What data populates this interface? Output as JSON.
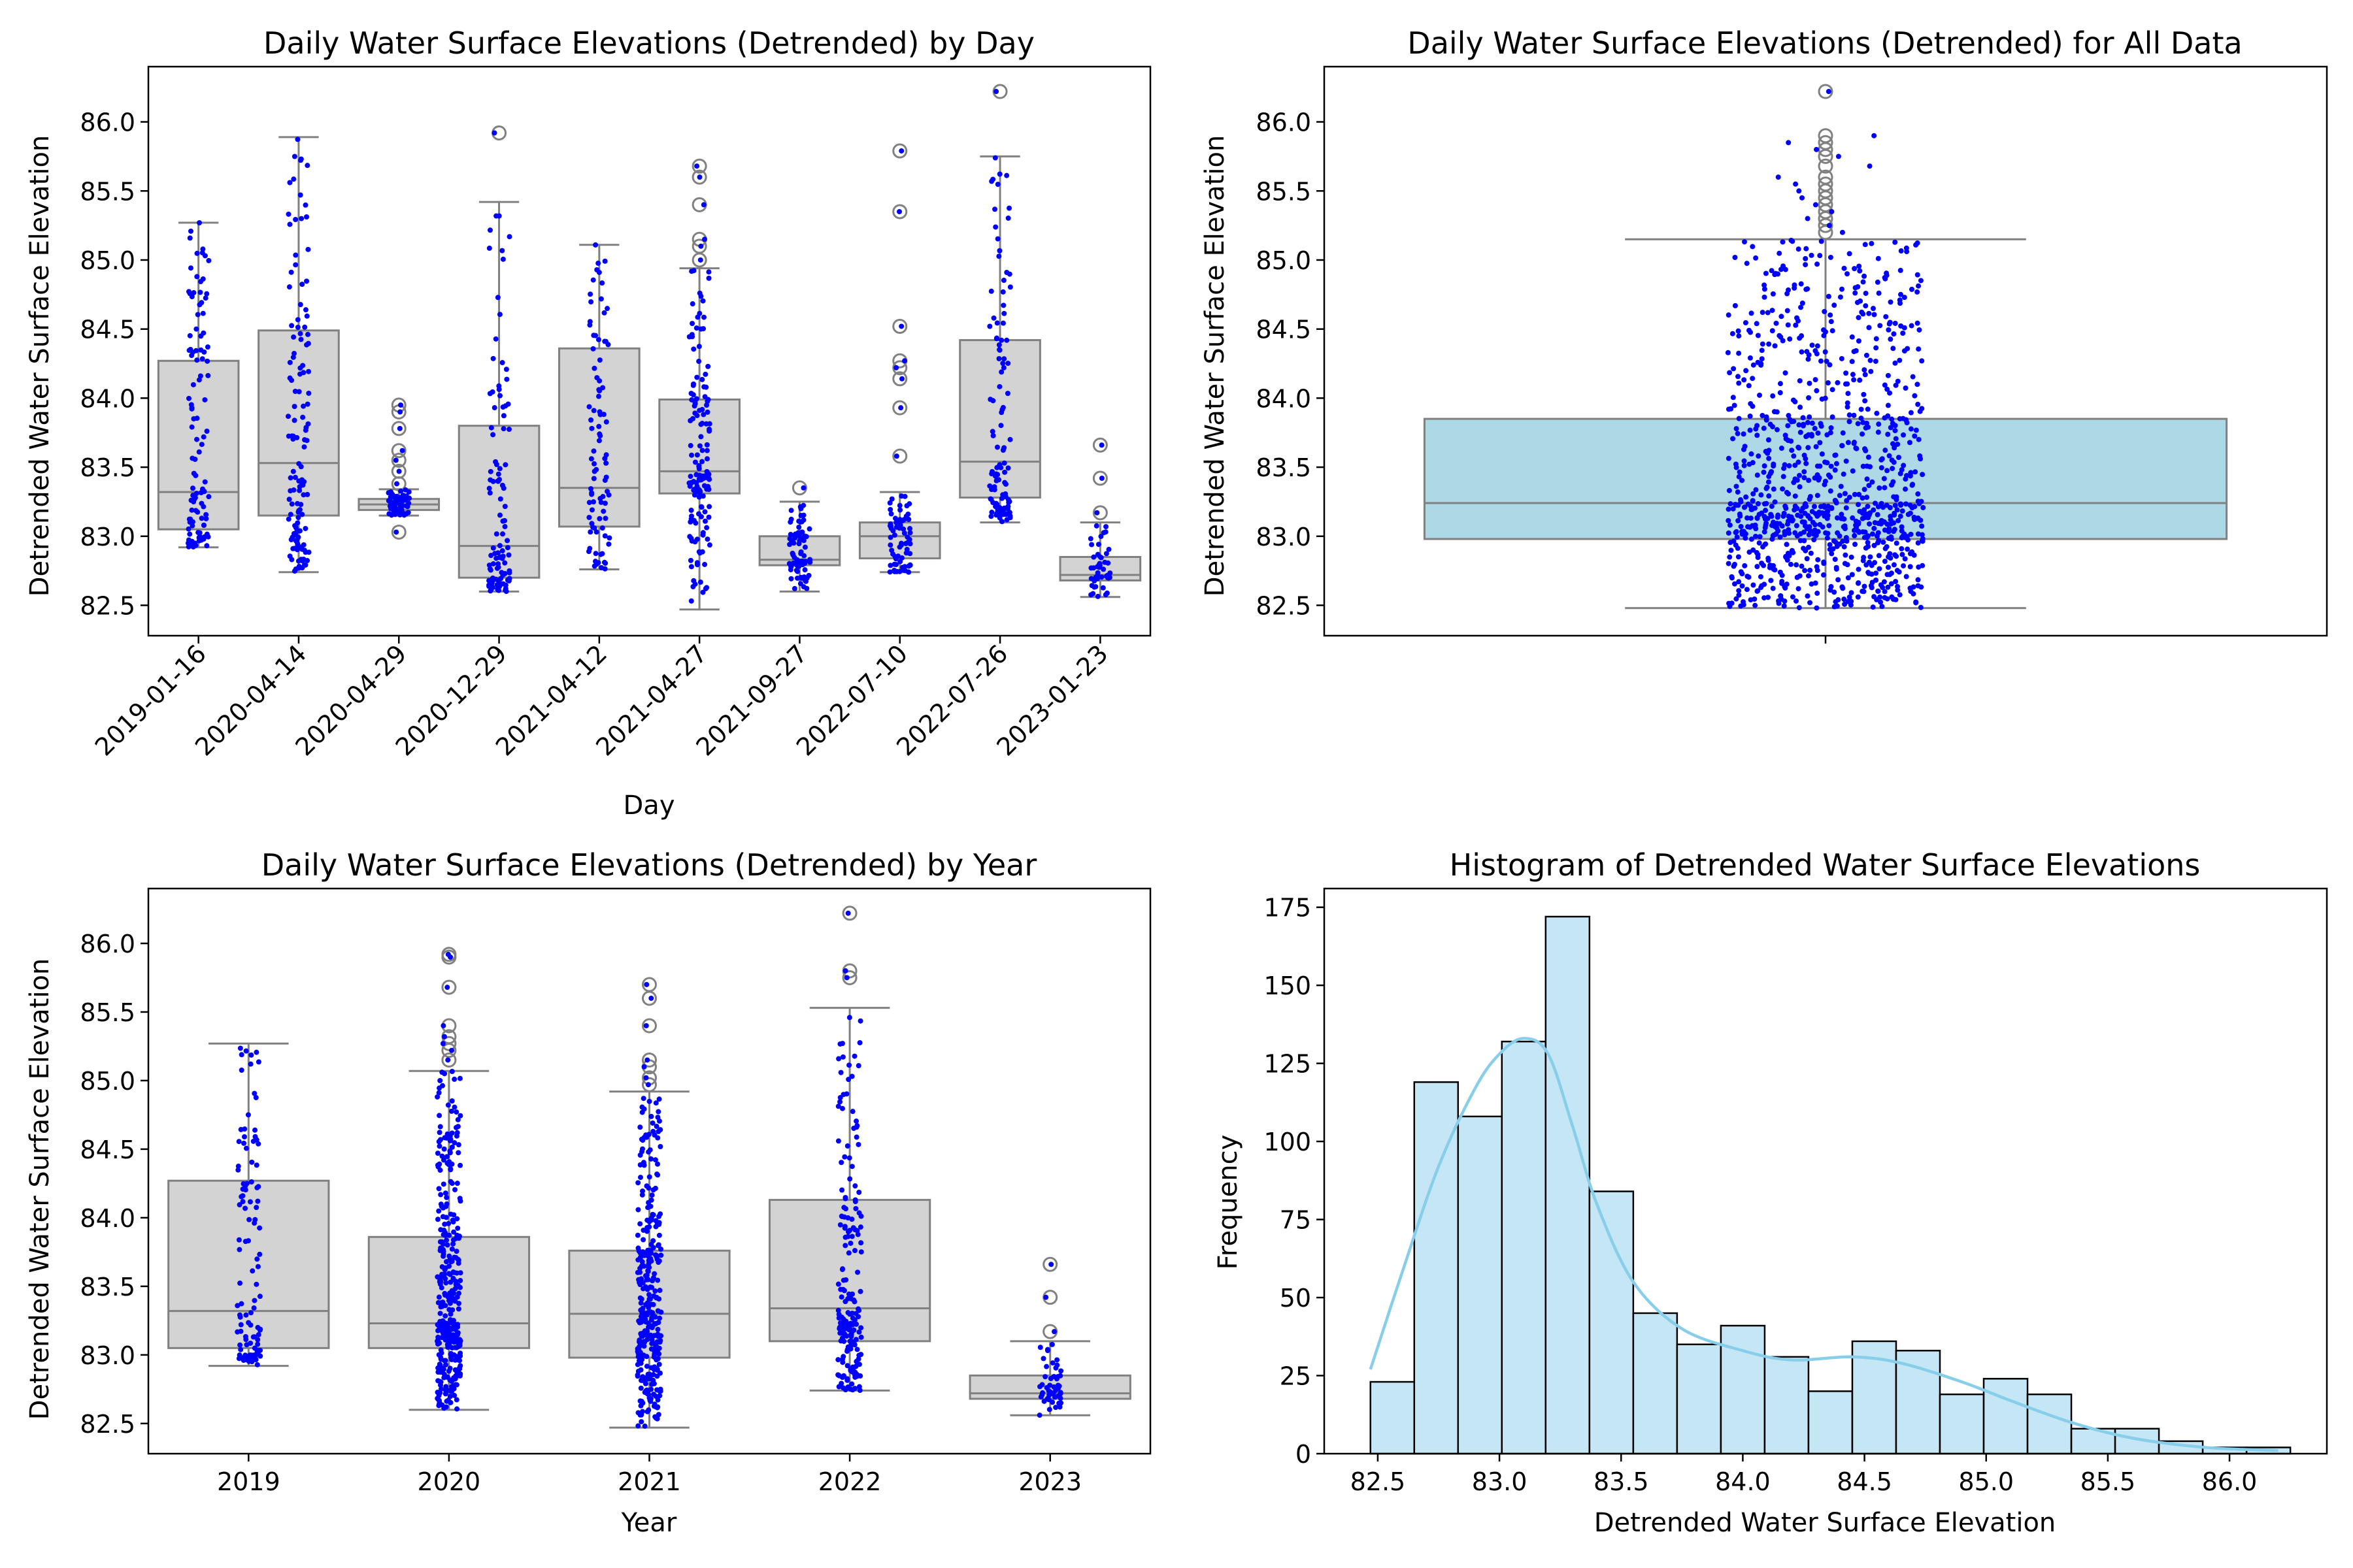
{
  "chart_data": [
    {
      "type": "box",
      "title": "Daily Water Surface Elevations (Detrended) by Day",
      "xlabel": "Day",
      "ylabel": "Detrended Water Surface Elevation",
      "ylim": [
        82.28,
        86.4
      ],
      "yticks": [
        82.5,
        83.0,
        83.5,
        84.0,
        84.5,
        85.0,
        85.5,
        86.0
      ],
      "box_color": "#d3d3d3",
      "point_color": "#0000ff",
      "categories": [
        "2019-01-16",
        "2020-04-14",
        "2020-04-29",
        "2020-12-29",
        "2021-04-12",
        "2021-04-27",
        "2021-09-27",
        "2022-07-10",
        "2022-07-26",
        "2023-01-23"
      ],
      "boxes": [
        {
          "whislo": 82.92,
          "q1": 83.05,
          "med": 83.32,
          "q3": 84.27,
          "whishi": 85.27,
          "fliers": []
        },
        {
          "whislo": 82.74,
          "q1": 83.15,
          "med": 83.53,
          "q3": 84.49,
          "whishi": 85.89,
          "fliers": []
        },
        {
          "whislo": 83.15,
          "q1": 83.19,
          "med": 83.23,
          "q3": 83.27,
          "whishi": 83.34,
          "fliers": [
            83.03,
            83.38,
            83.47,
            83.55,
            83.62,
            83.78,
            83.9,
            83.95
          ]
        },
        {
          "whislo": 82.6,
          "q1": 82.7,
          "med": 82.93,
          "q3": 83.8,
          "whishi": 85.42,
          "fliers": [
            85.92
          ]
        },
        {
          "whislo": 82.76,
          "q1": 83.07,
          "med": 83.35,
          "q3": 84.36,
          "whishi": 85.11,
          "fliers": []
        },
        {
          "whislo": 82.47,
          "q1": 83.31,
          "med": 83.47,
          "q3": 83.99,
          "whishi": 84.94,
          "fliers": [
            85.0,
            85.1,
            85.15,
            85.4,
            85.6,
            85.68
          ]
        },
        {
          "whislo": 82.6,
          "q1": 82.79,
          "med": 82.83,
          "q3": 83.0,
          "whishi": 83.25,
          "fliers": [
            83.35
          ]
        },
        {
          "whislo": 82.74,
          "q1": 82.84,
          "med": 83.0,
          "q3": 83.1,
          "whishi": 83.32,
          "fliers": [
            83.58,
            83.93,
            84.14,
            84.22,
            84.27,
            84.52,
            85.35,
            85.79
          ]
        },
        {
          "whislo": 83.1,
          "q1": 83.28,
          "med": 83.54,
          "q3": 84.42,
          "whishi": 85.75,
          "fliers": [
            86.22
          ]
        },
        {
          "whislo": 82.56,
          "q1": 82.68,
          "med": 82.72,
          "q3": 82.85,
          "whishi": 83.1,
          "fliers": [
            83.17,
            83.42,
            83.66
          ]
        }
      ]
    },
    {
      "type": "box",
      "title": "Daily Water Surface Elevations (Detrended) for All Data",
      "xlabel": "",
      "ylabel": "Detrended Water Surface Elevation",
      "ylim": [
        82.28,
        86.4
      ],
      "yticks": [
        82.5,
        83.0,
        83.5,
        84.0,
        84.5,
        85.0,
        85.5,
        86.0
      ],
      "box_color": "#add8e6",
      "point_color": "#0000ff",
      "categories": [
        ""
      ],
      "boxes": [
        {
          "whislo": 82.48,
          "q1": 82.98,
          "med": 83.24,
          "q3": 83.85,
          "whishi": 85.15,
          "fliers": [
            85.2,
            85.25,
            85.3,
            85.35,
            85.4,
            85.45,
            85.5,
            85.55,
            85.6,
            85.68,
            85.75,
            85.8,
            85.85,
            85.9,
            86.22
          ]
        }
      ]
    },
    {
      "type": "box",
      "title": "Daily Water Surface Elevations (Detrended) by Year",
      "xlabel": "Year",
      "ylabel": "Detrended Water Surface Elevation",
      "ylim": [
        82.28,
        86.4
      ],
      "yticks": [
        82.5,
        83.0,
        83.5,
        84.0,
        84.5,
        85.0,
        85.5,
        86.0
      ],
      "box_color": "#d3d3d3",
      "point_color": "#0000ff",
      "categories": [
        "2019",
        "2020",
        "2021",
        "2022",
        "2023"
      ],
      "boxes": [
        {
          "whislo": 82.92,
          "q1": 83.05,
          "med": 83.32,
          "q3": 84.27,
          "whishi": 85.27,
          "fliers": []
        },
        {
          "whislo": 82.6,
          "q1": 83.05,
          "med": 83.23,
          "q3": 83.86,
          "whishi": 85.07,
          "fliers": [
            85.15,
            85.22,
            85.27,
            85.32,
            85.4,
            85.68,
            85.9,
            85.92
          ]
        },
        {
          "whislo": 82.47,
          "q1": 82.98,
          "med": 83.3,
          "q3": 83.76,
          "whishi": 84.92,
          "fliers": [
            84.97,
            85.02,
            85.1,
            85.15,
            85.4,
            85.6,
            85.7
          ]
        },
        {
          "whislo": 82.74,
          "q1": 83.1,
          "med": 83.34,
          "q3": 84.13,
          "whishi": 85.53,
          "fliers": [
            85.75,
            85.8,
            86.22
          ]
        },
        {
          "whislo": 82.56,
          "q1": 82.68,
          "med": 82.72,
          "q3": 82.85,
          "whishi": 83.1,
          "fliers": [
            83.17,
            83.42,
            83.66
          ]
        }
      ]
    },
    {
      "type": "histogram",
      "title": "Histogram of Detrended Water Surface Elevations",
      "xlabel": "Detrended Water Surface Elevation",
      "ylabel": "Frequency",
      "xlim": [
        82.28,
        86.4
      ],
      "ylim": [
        0,
        181
      ],
      "xticks": [
        82.5,
        83.0,
        83.5,
        84.0,
        84.5,
        85.0,
        85.5,
        86.0
      ],
      "yticks": [
        0,
        25,
        50,
        75,
        100,
        125,
        150,
        175
      ],
      "bar_color": "#c5e6f4",
      "kde_color": "#87ceeb",
      "bin_start": 82.47,
      "bin_width": 0.18,
      "counts": [
        23,
        119,
        108,
        132,
        172,
        84,
        45,
        35,
        41,
        31,
        20,
        36,
        33,
        19,
        24,
        19,
        8,
        8,
        4,
        2,
        2
      ],
      "kde": [
        [
          82.47,
          27
        ],
        [
          82.6,
          58
        ],
        [
          82.75,
          92
        ],
        [
          82.9,
          117
        ],
        [
          83.0,
          128
        ],
        [
          83.1,
          133
        ],
        [
          83.2,
          128
        ],
        [
          83.3,
          105
        ],
        [
          83.4,
          80
        ],
        [
          83.55,
          55
        ],
        [
          83.75,
          40
        ],
        [
          84.0,
          33
        ],
        [
          84.2,
          30
        ],
        [
          84.45,
          31
        ],
        [
          84.65,
          29
        ],
        [
          84.9,
          23
        ],
        [
          85.1,
          17
        ],
        [
          85.35,
          10
        ],
        [
          85.6,
          5
        ],
        [
          85.9,
          2
        ],
        [
          86.2,
          1
        ]
      ]
    }
  ]
}
